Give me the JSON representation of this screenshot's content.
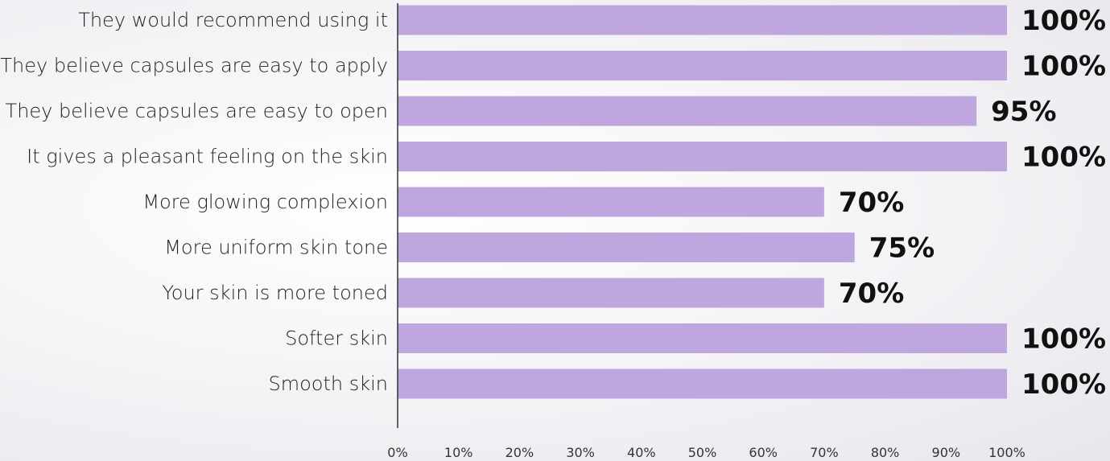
{
  "chart_data": {
    "type": "bar",
    "orientation": "horizontal",
    "categories": [
      "They would recommend using it",
      "They believe capsules are easy to apply",
      "They believe capsules are easy to open",
      "It gives a pleasant feeling on the skin",
      "More glowing complexion",
      "More uniform skin tone",
      "Your skin is more toned",
      "Softer skin",
      "Smooth skin"
    ],
    "values": [
      100,
      100,
      95,
      100,
      70,
      75,
      70,
      100,
      100
    ],
    "value_labels": [
      "100%",
      "100%",
      "95%",
      "100%",
      "70%",
      "75%",
      "70%",
      "100%",
      "100%"
    ],
    "x_ticks": [
      "0%",
      "10%",
      "20%",
      "30%",
      "40%",
      "50%",
      "60%",
      "70%",
      "80%",
      "90%",
      "100%"
    ],
    "xlim": [
      0,
      100
    ],
    "grid": false,
    "legend": "none",
    "bar_color": "#c0a6de",
    "axis_color": "#333333"
  }
}
